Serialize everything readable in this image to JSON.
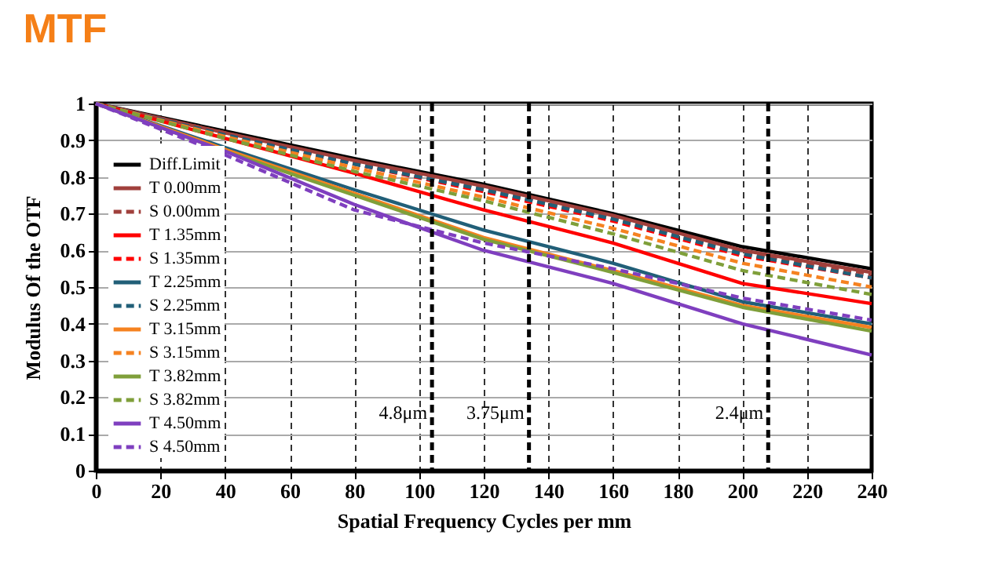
{
  "chart_data": {
    "type": "line",
    "title": "MTF",
    "xlabel": "Spatial Frequency Cycles per mm",
    "ylabel": "Modulus Of the OTF",
    "x": [
      0,
      40,
      80,
      120,
      160,
      200,
      240
    ],
    "xlim": [
      0,
      240
    ],
    "xticks": [
      0,
      20,
      40,
      60,
      80,
      100,
      120,
      140,
      160,
      180,
      200,
      220,
      240
    ],
    "ylim": [
      0,
      1
    ],
    "yticks": [
      0,
      0.1,
      0.2,
      0.3,
      0.4,
      0.5,
      0.6,
      0.7,
      0.8,
      0.9,
      1
    ],
    "grid": true,
    "legend": "bottom left",
    "marker": "none",
    "series": [
      {
        "name": "Diff.Limit",
        "color": "#000000",
        "line_style": "solid",
        "values": [
          1,
          0.925,
          0.85,
          0.78,
          0.7,
          0.61,
          0.55
        ]
      },
      {
        "name": "T 0.00mm",
        "color": "#a0403c",
        "line_style": "solid",
        "values": [
          1,
          0.92,
          0.845,
          0.775,
          0.695,
          0.6,
          0.54
        ]
      },
      {
        "name": "S 0.00mm",
        "color": "#a0403c",
        "line_style": "dashed",
        "values": [
          1,
          0.92,
          0.84,
          0.77,
          0.69,
          0.595,
          0.535
        ]
      },
      {
        "name": "T 1.35mm",
        "color": "#ff0000",
        "line_style": "solid",
        "values": [
          1,
          0.905,
          0.81,
          0.71,
          0.62,
          0.51,
          0.455
        ]
      },
      {
        "name": "S 1.35mm",
        "color": "#ff0000",
        "line_style": "dashed",
        "values": [
          1,
          0.915,
          0.835,
          0.76,
          0.68,
          0.585,
          0.525
        ]
      },
      {
        "name": "T 2.25mm",
        "color": "#215f78",
        "line_style": "solid",
        "values": [
          1,
          0.88,
          0.765,
          0.655,
          0.565,
          0.46,
          0.4
        ]
      },
      {
        "name": "S 2.25mm",
        "color": "#215f78",
        "line_style": "dashed",
        "values": [
          1,
          0.915,
          0.835,
          0.765,
          0.685,
          0.59,
          0.525
        ]
      },
      {
        "name": "T 3.15mm",
        "color": "#f58220",
        "line_style": "solid",
        "values": [
          1,
          0.875,
          0.755,
          0.635,
          0.545,
          0.45,
          0.39
        ]
      },
      {
        "name": "S 3.15mm",
        "color": "#f58220",
        "line_style": "dashed",
        "values": [
          1,
          0.91,
          0.825,
          0.745,
          0.66,
          0.565,
          0.5
        ]
      },
      {
        "name": "T 3.82mm",
        "color": "#7f9f3a",
        "line_style": "solid",
        "values": [
          1,
          0.87,
          0.75,
          0.63,
          0.54,
          0.445,
          0.38
        ]
      },
      {
        "name": "S 3.82mm",
        "color": "#7f9f3a",
        "line_style": "dashed",
        "values": [
          1,
          0.905,
          0.815,
          0.735,
          0.645,
          0.545,
          0.48
        ]
      },
      {
        "name": "T 4.50mm",
        "color": "#7f3fbf",
        "line_style": "solid",
        "values": [
          1,
          0.87,
          0.725,
          0.6,
          0.51,
          0.4,
          0.315
        ]
      },
      {
        "name": "S 4.50mm",
        "color": "#7f3fbf",
        "line_style": "dashed",
        "values": [
          1,
          0.86,
          0.71,
          0.62,
          0.55,
          0.47,
          0.41
        ]
      }
    ],
    "ref_lines": [
      {
        "axis": "x",
        "value": 104,
        "label": "4.8μm",
        "color": "#000000",
        "line_style": "dashed"
      },
      {
        "axis": "x",
        "value": 134,
        "label": "3.75μm",
        "color": "#000000",
        "line_style": "dashed"
      },
      {
        "axis": "x",
        "value": 208,
        "label": "2.4μm",
        "color": "#000000",
        "line_style": "dashed"
      }
    ]
  }
}
